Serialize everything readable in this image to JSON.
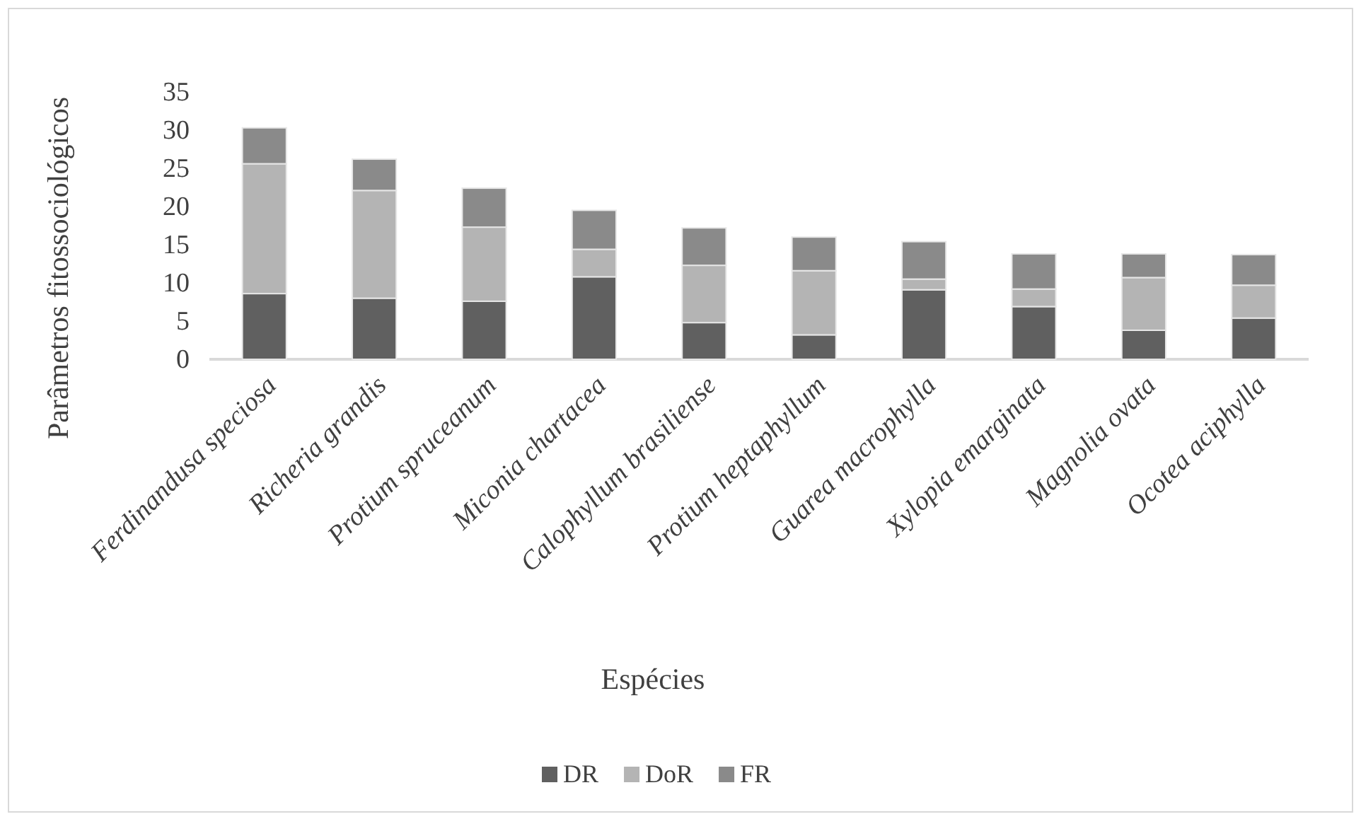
{
  "chart_data": {
    "type": "bar",
    "stacked": true,
    "xlabel": "Espécies",
    "ylabel": "Parâmetros fitossociológicos",
    "categories": [
      "Ferdinandusa speciosa",
      "Richeria grandis",
      "Protium spruceanum",
      "Miconia chartacea",
      "Calophyllum brasiliense",
      "Protium heptaphyllum",
      "Guarea macrophylla",
      "Xylopia emarginata",
      "Magnolia ovata",
      "Ocotea aciphylla"
    ],
    "series": [
      {
        "name": "DR",
        "color": "#606060",
        "values": [
          8.6,
          8.0,
          7.6,
          10.8,
          4.8,
          3.2,
          9.1,
          6.9,
          3.8,
          5.4
        ]
      },
      {
        "name": "DoR",
        "color": "#b4b4b4",
        "values": [
          17.0,
          14.1,
          9.7,
          3.6,
          7.5,
          8.4,
          1.4,
          2.3,
          6.9,
          4.3
        ]
      },
      {
        "name": "FR",
        "color": "#8a8a8a",
        "values": [
          4.7,
          4.1,
          5.1,
          5.1,
          4.9,
          4.4,
          4.9,
          4.6,
          3.1,
          4.0
        ]
      }
    ],
    "ylim": [
      0,
      35
    ],
    "yticks": [
      0,
      5,
      10,
      15,
      20,
      25,
      30,
      35
    ],
    "grid": false,
    "legend": "bottom"
  }
}
